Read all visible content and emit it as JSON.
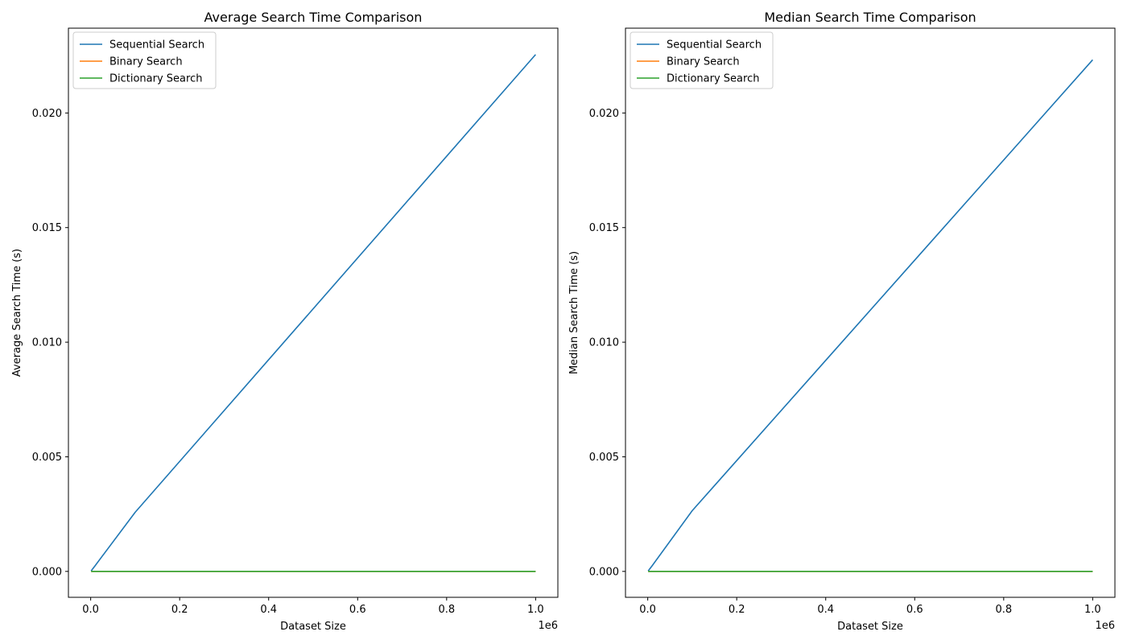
{
  "chart_data": [
    {
      "type": "line",
      "title": "Average Search Time Comparison",
      "xlabel": "Dataset Size",
      "ylabel": "Average Search Time (s)",
      "x_offset_label": "1e6",
      "x": [
        1000,
        10000,
        100000,
        1000000
      ],
      "xlim": [
        -0.05,
        1.05
      ],
      "ylim": [
        -0.00113,
        0.0237
      ],
      "xticks": [
        0,
        0.2,
        0.4,
        0.6,
        0.8,
        1.0
      ],
      "xtick_labels": [
        "0.0",
        "0.2",
        "0.4",
        "0.6",
        "0.8",
        "1.0"
      ],
      "yticks": [
        0,
        0.005,
        0.01,
        0.015,
        0.02
      ],
      "ytick_labels": [
        "0.000",
        "0.005",
        "0.010",
        "0.015",
        "0.020"
      ],
      "legend_position": "top-left",
      "series": [
        {
          "name": "Sequential Search",
          "color": "#1f77b4",
          "values": [
            2e-05,
            0.00025,
            0.00258,
            0.02255
          ]
        },
        {
          "name": "Binary Search",
          "color": "#ff7f0e",
          "values": [
            1e-06,
            1e-06,
            2e-06,
            2e-06
          ]
        },
        {
          "name": "Dictionary Search",
          "color": "#2ca02c",
          "values": [
            1e-07,
            1e-07,
            1e-07,
            1e-07
          ]
        }
      ]
    },
    {
      "type": "line",
      "title": "Median Search Time Comparison",
      "xlabel": "Dataset Size",
      "ylabel": "Median Search Time (s)",
      "x_offset_label": "1e6",
      "x": [
        1000,
        10000,
        100000,
        1000000
      ],
      "xlim": [
        -0.05,
        1.05
      ],
      "ylim": [
        -0.00113,
        0.0237
      ],
      "xticks": [
        0,
        0.2,
        0.4,
        0.6,
        0.8,
        1.0
      ],
      "xtick_labels": [
        "0.0",
        "0.2",
        "0.4",
        "0.6",
        "0.8",
        "1.0"
      ],
      "yticks": [
        0,
        0.005,
        0.01,
        0.015,
        0.02
      ],
      "ytick_labels": [
        "0.000",
        "0.005",
        "0.010",
        "0.015",
        "0.020"
      ],
      "legend_position": "top-left",
      "series": [
        {
          "name": "Sequential Search",
          "color": "#1f77b4",
          "values": [
            2e-05,
            0.00025,
            0.00265,
            0.02232
          ]
        },
        {
          "name": "Binary Search",
          "color": "#ff7f0e",
          "values": [
            1e-06,
            1e-06,
            2e-06,
            2e-06
          ]
        },
        {
          "name": "Dictionary Search",
          "color": "#2ca02c",
          "values": [
            1e-07,
            1e-07,
            1e-07,
            1e-07
          ]
        }
      ]
    }
  ]
}
